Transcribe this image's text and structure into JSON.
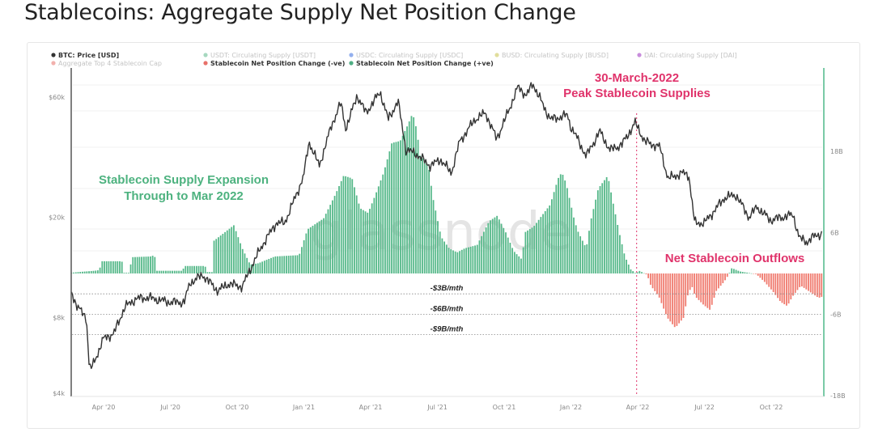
{
  "page": {
    "title": "Stablecoins: Aggregate Supply Net Position Change"
  },
  "legend": [
    {
      "label": "BTC: Price [USD]",
      "color": "#333333",
      "active": true
    },
    {
      "label": "USDT: Circulating Supply [USDT]",
      "color": "#5cb88a",
      "active": false
    },
    {
      "label": "USDC: Circulating Supply [USDC]",
      "color": "#3b6fe0",
      "active": false
    },
    {
      "label": "BUSD: Circulating Supply [BUSD]",
      "color": "#c9c24a",
      "active": false
    },
    {
      "label": "DAI: Circulating Supply [DAI]",
      "color": "#9b2fc0",
      "active": false
    },
    {
      "label": "Aggregate Top 4 Stablecoin Cap",
      "color": "#e8716a",
      "active": false
    },
    {
      "label": "Stablecoin Net Position Change (-ve)",
      "color": "#e8716a",
      "active": true
    },
    {
      "label": "Stablecoin Net Position Change (+ve)",
      "color": "#4fae84",
      "active": true
    }
  ],
  "watermark": "glassnode",
  "annotations": {
    "expansion_line1": "Stablecoin Supply Expansion",
    "expansion_line2": "Through to Mar 2022",
    "peak_line1": "30-March-2022",
    "peak_line2": "Peak Stablecoin Supplies",
    "outflows": "Net Stablecoin Outflows",
    "peak_date": "2022-03-30"
  },
  "chart_data": {
    "type": "bar+line",
    "title": "Stablecoins: Aggregate Supply Net Position Change",
    "colors": {
      "positive": "#55b889",
      "negative": "#f07b6f",
      "price": "#333333",
      "right_axis": "#4fb88a",
      "annotation_pink": "#e0336b"
    },
    "x_range": [
      "2020-02-18",
      "2022-12-10"
    ],
    "x_ticks": [
      {
        "date": "2020-04-01",
        "label": "Apr '20"
      },
      {
        "date": "2020-07-01",
        "label": "Jul '20"
      },
      {
        "date": "2020-10-01",
        "label": "Oct '20"
      },
      {
        "date": "2021-01-01",
        "label": "Jan '21"
      },
      {
        "date": "2021-04-01",
        "label": "Apr '21"
      },
      {
        "date": "2021-07-01",
        "label": "Jul '21"
      },
      {
        "date": "2021-10-01",
        "label": "Oct '21"
      },
      {
        "date": "2022-01-01",
        "label": "Jan '22"
      },
      {
        "date": "2022-04-01",
        "label": "Apr '22"
      },
      {
        "date": "2022-07-01",
        "label": "Jul '22"
      },
      {
        "date": "2022-10-01",
        "label": "Oct '22"
      }
    ],
    "left_axis": {
      "scale": "log",
      "range": [
        4000,
        66000
      ],
      "ticks": [
        {
          "value": 60000,
          "label": "$60k"
        },
        {
          "value": 20000,
          "label": "$20k"
        },
        {
          "value": 8000,
          "label": "$8k"
        },
        {
          "value": 4000,
          "label": "$4k"
        }
      ]
    },
    "right_axis": {
      "scale": "linear",
      "unit": "B USD/month",
      "ticks": [
        {
          "value": 18,
          "label": "18B"
        },
        {
          "value": 6,
          "label": "6B"
        },
        {
          "value": -6,
          "label": "-6B"
        },
        {
          "value": -18,
          "label": "-18B"
        }
      ]
    },
    "reference_lines": [
      {
        "value": -3,
        "label": "-$3B/mth"
      },
      {
        "value": -6,
        "label": "-$6B/mth"
      },
      {
        "value": -9,
        "label": "-$9B/mth"
      }
    ],
    "btc_price": [
      [
        "2020-02-18",
        10100
      ],
      [
        "2020-02-26",
        8800
      ],
      [
        "2020-03-08",
        8000
      ],
      [
        "2020-03-12",
        5000
      ],
      [
        "2020-03-16",
        5100
      ],
      [
        "2020-04-01",
        6600
      ],
      [
        "2020-04-15",
        6900
      ],
      [
        "2020-04-30",
        8800
      ],
      [
        "2020-05-15",
        9500
      ],
      [
        "2020-06-01",
        9600
      ],
      [
        "2020-06-15",
        9400
      ],
      [
        "2020-07-01",
        9200
      ],
      [
        "2020-07-20",
        9200
      ],
      [
        "2020-07-28",
        11000
      ],
      [
        "2020-08-15",
        11800
      ],
      [
        "2020-09-05",
        10200
      ],
      [
        "2020-09-20",
        10900
      ],
      [
        "2020-10-08",
        10600
      ],
      [
        "2020-10-21",
        12800
      ],
      [
        "2020-11-05",
        15500
      ],
      [
        "2020-11-24",
        19000
      ],
      [
        "2020-12-05",
        19000
      ],
      [
        "2020-12-17",
        23000
      ],
      [
        "2020-12-31",
        29000
      ],
      [
        "2021-01-08",
        40000
      ],
      [
        "2021-01-22",
        32000
      ],
      [
        "2021-02-08",
        46000
      ],
      [
        "2021-02-21",
        57000
      ],
      [
        "2021-02-28",
        45000
      ],
      [
        "2021-03-13",
        61000
      ],
      [
        "2021-03-25",
        52000
      ],
      [
        "2021-04-14",
        63000
      ],
      [
        "2021-04-25",
        49000
      ],
      [
        "2021-05-08",
        58000
      ],
      [
        "2021-05-19",
        37000
      ],
      [
        "2021-06-01",
        36000
      ],
      [
        "2021-06-22",
        32000
      ],
      [
        "2021-07-05",
        34000
      ],
      [
        "2021-07-20",
        30000
      ],
      [
        "2021-08-01",
        40000
      ],
      [
        "2021-08-22",
        49000
      ],
      [
        "2021-09-06",
        52000
      ],
      [
        "2021-09-21",
        41000
      ],
      [
        "2021-10-01",
        48000
      ],
      [
        "2021-10-20",
        66000
      ],
      [
        "2021-11-01",
        61000
      ],
      [
        "2021-11-10",
        68000
      ],
      [
        "2021-11-26",
        54000
      ],
      [
        "2021-12-04",
        49000
      ],
      [
        "2021-12-27",
        51000
      ],
      [
        "2021-12-31",
        46000
      ],
      [
        "2022-01-10",
        41000
      ],
      [
        "2022-01-22",
        35000
      ],
      [
        "2022-02-10",
        44000
      ],
      [
        "2022-02-24",
        37000
      ],
      [
        "2022-03-10",
        39000
      ],
      [
        "2022-03-28",
        47500
      ],
      [
        "2022-04-11",
        40000
      ],
      [
        "2022-05-01",
        38000
      ],
      [
        "2022-05-12",
        28500
      ],
      [
        "2022-06-01",
        30000
      ],
      [
        "2022-06-10",
        29500
      ],
      [
        "2022-06-18",
        19000
      ],
      [
        "2022-07-01",
        19000
      ],
      [
        "2022-07-29",
        24000
      ],
      [
        "2022-08-14",
        24500
      ],
      [
        "2022-09-01",
        20000
      ],
      [
        "2022-09-12",
        22000
      ],
      [
        "2022-09-30",
        19500
      ],
      [
        "2022-10-31",
        20500
      ],
      [
        "2022-11-09",
        16500
      ],
      [
        "2022-11-20",
        16000
      ],
      [
        "2022-12-01",
        17000
      ],
      [
        "2022-12-10",
        17200
      ]
    ],
    "net_position_change": [
      [
        "2020-02-18",
        0.1
      ],
      [
        "2020-02-26",
        0.2
      ],
      [
        "2020-03-19",
        0.4
      ],
      [
        "2020-03-26",
        0.5
      ],
      [
        "2020-03-28",
        1.8
      ],
      [
        "2020-04-26",
        1.8
      ],
      [
        "2020-04-29",
        0.1
      ],
      [
        "2020-05-05",
        0.1
      ],
      [
        "2020-05-10",
        2.4
      ],
      [
        "2020-06-04",
        2.5
      ],
      [
        "2020-06-10",
        2.7
      ],
      [
        "2020-06-12",
        0.4
      ],
      [
        "2020-07-17",
        0.4
      ],
      [
        "2020-07-21",
        1.1
      ],
      [
        "2020-08-18",
        1.1
      ],
      [
        "2020-08-21",
        0.2
      ],
      [
        "2020-08-28",
        0.2
      ],
      [
        "2020-08-30",
        4.8
      ],
      [
        "2020-09-27",
        7.1
      ],
      [
        "2020-10-08",
        3.7
      ],
      [
        "2020-10-19",
        1.3
      ],
      [
        "2020-10-30",
        1.5
      ],
      [
        "2020-11-22",
        2.5
      ],
      [
        "2020-12-25",
        2.7
      ],
      [
        "2021-01-06",
        6.5
      ],
      [
        "2021-01-28",
        8.1
      ],
      [
        "2021-02-14",
        11.7
      ],
      [
        "2021-02-25",
        14.4
      ],
      [
        "2021-03-06",
        14.0
      ],
      [
        "2021-03-17",
        9.6
      ],
      [
        "2021-03-28",
        8.9
      ],
      [
        "2021-04-08",
        11.7
      ],
      [
        "2021-04-19",
        14.9
      ],
      [
        "2021-04-30",
        19.2
      ],
      [
        "2021-05-11",
        19.5
      ],
      [
        "2021-05-22",
        22.0
      ],
      [
        "2021-05-28",
        23.6
      ],
      [
        "2021-06-03",
        21.2
      ],
      [
        "2021-06-08",
        17.3
      ],
      [
        "2021-06-19",
        16.0
      ],
      [
        "2021-06-25",
        11.3
      ],
      [
        "2021-07-06",
        5.4
      ],
      [
        "2021-07-17",
        3.7
      ],
      [
        "2021-07-28",
        3.1
      ],
      [
        "2021-08-08",
        3.7
      ],
      [
        "2021-08-25",
        4.2
      ],
      [
        "2021-09-11",
        7.7
      ],
      [
        "2021-09-22",
        8.5
      ],
      [
        "2021-10-03",
        6.1
      ],
      [
        "2021-10-14",
        3.3
      ],
      [
        "2021-10-25",
        2.1
      ],
      [
        "2021-10-30",
        6.1
      ],
      [
        "2021-11-11",
        6.9
      ],
      [
        "2021-11-22",
        8.5
      ],
      [
        "2021-12-03",
        10.1
      ],
      [
        "2021-12-14",
        14.0
      ],
      [
        "2021-12-19",
        14.9
      ],
      [
        "2021-12-25",
        13.2
      ],
      [
        "2022-01-06",
        7.7
      ],
      [
        "2022-01-11",
        6.1
      ],
      [
        "2022-01-22",
        3.7
      ],
      [
        "2022-01-28",
        7.7
      ],
      [
        "2022-02-08",
        12.5
      ],
      [
        "2022-02-21",
        14.4
      ],
      [
        "2022-02-28",
        10.5
      ],
      [
        "2022-03-06",
        6.1
      ],
      [
        "2022-03-14",
        2.5
      ],
      [
        "2022-03-22",
        0.6
      ],
      [
        "2022-03-29",
        0.0
      ],
      [
        "2022-04-03",
        0.4
      ],
      [
        "2022-04-14",
        -0.2
      ],
      [
        "2022-04-19",
        -1.8
      ],
      [
        "2022-04-30",
        -3.4
      ],
      [
        "2022-05-11",
        -6.5
      ],
      [
        "2022-05-22",
        -8.0
      ],
      [
        "2022-06-03",
        -6.5
      ],
      [
        "2022-06-08",
        -3.4
      ],
      [
        "2022-06-14",
        -1.8
      ],
      [
        "2022-06-19",
        -3.4
      ],
      [
        "2022-06-30",
        -4.6
      ],
      [
        "2022-07-09",
        -5.4
      ],
      [
        "2022-07-17",
        -2.6
      ],
      [
        "2022-07-28",
        -1.2
      ],
      [
        "2022-08-03",
        -0.3
      ],
      [
        "2022-08-08",
        0.8
      ],
      [
        "2022-08-19",
        0.3
      ],
      [
        "2022-09-11",
        -0.1
      ],
      [
        "2022-09-22",
        -1.2
      ],
      [
        "2022-10-03",
        -2.6
      ],
      [
        "2022-10-14",
        -4.2
      ],
      [
        "2022-10-23",
        -4.8
      ],
      [
        "2022-10-30",
        -3.4
      ],
      [
        "2022-11-11",
        -1.8
      ],
      [
        "2022-11-22",
        -2.6
      ],
      [
        "2022-12-05",
        -3.6
      ],
      [
        "2022-12-10",
        -3.4
      ]
    ]
  }
}
